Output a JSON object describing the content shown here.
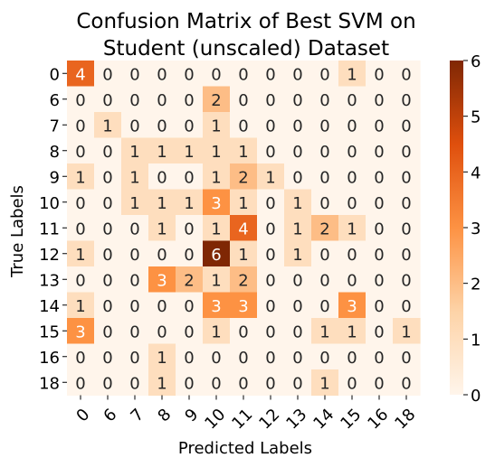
{
  "chart_data": {
    "type": "heatmap",
    "title_lines": [
      "Confusion Matrix of Best SVM on",
      "Student (unscaled) Dataset"
    ],
    "xlabel": "Predicted Labels",
    "ylabel": "True Labels",
    "x_categories": [
      "0",
      "6",
      "7",
      "8",
      "9",
      "10",
      "11",
      "12",
      "13",
      "14",
      "15",
      "16",
      "18"
    ],
    "y_categories": [
      "0",
      "6",
      "7",
      "8",
      "9",
      "10",
      "11",
      "12",
      "13",
      "14",
      "15",
      "16",
      "18"
    ],
    "values": [
      [
        4,
        0,
        0,
        0,
        0,
        0,
        0,
        0,
        0,
        0,
        1,
        0,
        0
      ],
      [
        0,
        0,
        0,
        0,
        0,
        2,
        0,
        0,
        0,
        0,
        0,
        0,
        0
      ],
      [
        0,
        1,
        0,
        0,
        0,
        1,
        0,
        0,
        0,
        0,
        0,
        0,
        0
      ],
      [
        0,
        0,
        1,
        1,
        1,
        1,
        1,
        0,
        0,
        0,
        0,
        0,
        0
      ],
      [
        1,
        0,
        1,
        0,
        0,
        1,
        2,
        1,
        0,
        0,
        0,
        0,
        0
      ],
      [
        0,
        0,
        1,
        1,
        1,
        3,
        1,
        0,
        1,
        0,
        0,
        0,
        0
      ],
      [
        0,
        0,
        0,
        1,
        0,
        1,
        4,
        0,
        1,
        2,
        1,
        0,
        0
      ],
      [
        1,
        0,
        0,
        0,
        0,
        6,
        1,
        0,
        1,
        0,
        0,
        0,
        0
      ],
      [
        0,
        0,
        0,
        3,
        2,
        1,
        2,
        0,
        0,
        0,
        0,
        0,
        0
      ],
      [
        1,
        0,
        0,
        0,
        0,
        3,
        3,
        0,
        0,
        0,
        3,
        0,
        0
      ],
      [
        3,
        0,
        0,
        0,
        0,
        1,
        0,
        0,
        0,
        1,
        1,
        0,
        1
      ],
      [
        0,
        0,
        0,
        1,
        0,
        0,
        0,
        0,
        0,
        0,
        0,
        0,
        0
      ],
      [
        0,
        0,
        0,
        1,
        0,
        0,
        0,
        0,
        0,
        1,
        0,
        0,
        0
      ]
    ],
    "colorbar": {
      "min": 0,
      "max": 6,
      "ticks": [
        "0",
        "1",
        "2",
        "3",
        "4",
        "5",
        "6"
      ]
    },
    "colormap": [
      "#fff5eb",
      "#fdd3a7",
      "#fd9243",
      "#df4f0d",
      "#7f2704"
    ],
    "annotations": true,
    "grid": false
  }
}
